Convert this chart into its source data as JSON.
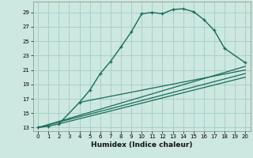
{
  "title": "",
  "xlabel": "Humidex (Indice chaleur)",
  "bg_color": "#cce8e0",
  "grid_color": "#a8d0c8",
  "line_color": "#1a6b5a",
  "xlim": [
    -0.5,
    20.5
  ],
  "ylim": [
    12.5,
    30.5
  ],
  "xticks": [
    0,
    1,
    2,
    3,
    4,
    5,
    6,
    7,
    8,
    9,
    10,
    11,
    12,
    13,
    14,
    15,
    16,
    17,
    18,
    19,
    20
  ],
  "yticks": [
    13,
    15,
    17,
    19,
    21,
    23,
    25,
    27,
    29
  ],
  "curve_x": [
    0,
    1,
    2,
    4,
    5,
    6,
    7,
    8,
    9,
    10,
    11,
    12,
    13,
    14,
    15,
    16,
    17,
    18,
    20
  ],
  "curve_y": [
    13.0,
    13.2,
    13.5,
    16.5,
    18.2,
    20.5,
    22.2,
    24.2,
    26.3,
    28.8,
    29.0,
    28.8,
    29.4,
    29.5,
    29.1,
    28.0,
    26.5,
    24.0,
    22.0
  ],
  "line1_x": [
    0,
    20
  ],
  "line1_y": [
    13.0,
    21.5
  ],
  "line2_x": [
    0,
    20
  ],
  "line2_y": [
    13.0,
    20.5
  ],
  "line3_x": [
    2,
    20
  ],
  "line3_y": [
    13.5,
    20.0
  ],
  "line4_x": [
    4,
    20
  ],
  "line4_y": [
    16.5,
    21.0
  ]
}
